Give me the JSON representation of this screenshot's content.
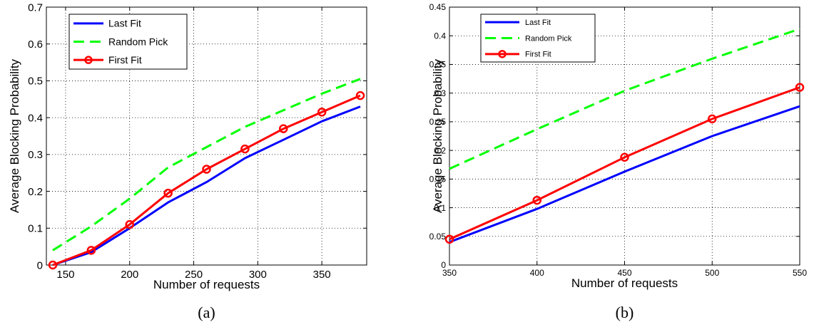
{
  "chart_data": [
    {
      "type": "line",
      "caption": "(a)",
      "xlabel": "Number of requests",
      "ylabel": "Average Blocking Probability",
      "xlim": [
        135,
        385
      ],
      "ylim": [
        0,
        0.7
      ],
      "xticks": [
        150,
        200,
        250,
        300,
        350
      ],
      "yticks": [
        0,
        0.1,
        0.2,
        0.3,
        0.4,
        0.5,
        0.6,
        0.7
      ],
      "grid": "dotted",
      "legend_position": "top-left",
      "series": [
        {
          "name": "Last Fit",
          "color": "#0000ff",
          "style": "solid",
          "marker": "none",
          "x": [
            140,
            170,
            200,
            230,
            260,
            290,
            320,
            350,
            380
          ],
          "y": [
            0.0,
            0.035,
            0.1,
            0.17,
            0.225,
            0.29,
            0.34,
            0.39,
            0.43
          ]
        },
        {
          "name": "Random Pick",
          "color": "#00ff00",
          "style": "dashed",
          "marker": "none",
          "x": [
            140,
            170,
            200,
            230,
            260,
            290,
            320,
            350,
            380
          ],
          "y": [
            0.04,
            0.105,
            0.18,
            0.265,
            0.32,
            0.375,
            0.42,
            0.465,
            0.505
          ]
        },
        {
          "name": "First Fit",
          "color": "#ff0000",
          "style": "solid",
          "marker": "circle",
          "x": [
            140,
            170,
            200,
            230,
            260,
            290,
            320,
            350,
            380
          ],
          "y": [
            0.0,
            0.04,
            0.11,
            0.195,
            0.26,
            0.315,
            0.37,
            0.415,
            0.46
          ]
        }
      ]
    },
    {
      "type": "line",
      "caption": "(b)",
      "xlabel": "Number of requests",
      "ylabel": "Average Blocking Probability",
      "xlim": [
        350,
        550
      ],
      "ylim": [
        0,
        0.45
      ],
      "xticks": [
        350,
        400,
        450,
        500,
        550
      ],
      "yticks": [
        0,
        0.05,
        0.1,
        0.15,
        0.2,
        0.25,
        0.3,
        0.35,
        0.4,
        0.45
      ],
      "grid": "dotted",
      "legend_position": "top-left",
      "series": [
        {
          "name": "Last Fit",
          "color": "#0000ff",
          "style": "solid",
          "marker": "none",
          "x": [
            350,
            400,
            450,
            500,
            550
          ],
          "y": [
            0.04,
            0.098,
            0.163,
            0.225,
            0.277
          ]
        },
        {
          "name": "Random Pick",
          "color": "#00ff00",
          "style": "dashed",
          "marker": "none",
          "x": [
            350,
            400,
            450,
            500,
            550
          ],
          "y": [
            0.168,
            0.237,
            0.304,
            0.36,
            0.412
          ]
        },
        {
          "name": "First Fit",
          "color": "#ff0000",
          "style": "solid",
          "marker": "circle",
          "x": [
            350,
            400,
            450,
            500,
            550
          ],
          "y": [
            0.045,
            0.113,
            0.188,
            0.255,
            0.31
          ]
        }
      ]
    }
  ]
}
